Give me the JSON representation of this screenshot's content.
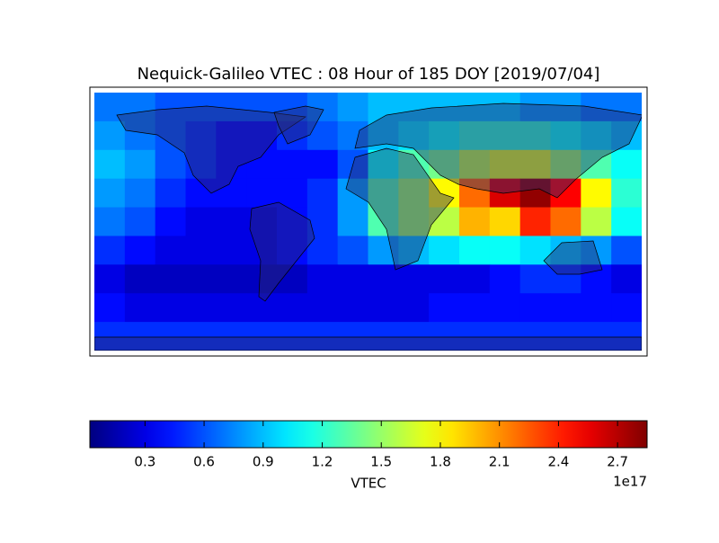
{
  "chart_data": {
    "type": "heatmap",
    "title": "Nequick-Galileo VTEC : 08 Hour of 185 DOY [2019/07/04]",
    "colormap": "jet",
    "values": [
      [
        0.7,
        0.7,
        0.6,
        0.6,
        0.6,
        0.6,
        0.6,
        0.7,
        0.8,
        0.9,
        0.9,
        0.9,
        0.9,
        0.9,
        0.8,
        0.8,
        0.7,
        0.7
      ],
      [
        0.8,
        0.7,
        0.6,
        0.5,
        0.4,
        0.4,
        0.5,
        0.6,
        0.7,
        0.9,
        1.0,
        1.1,
        1.2,
        1.2,
        1.2,
        1.1,
        1.0,
        0.9
      ],
      [
        0.9,
        0.8,
        0.6,
        0.5,
        0.4,
        0.4,
        0.4,
        0.4,
        0.6,
        1.1,
        1.3,
        1.4,
        1.6,
        1.7,
        1.7,
        1.5,
        1.3,
        1.1
      ],
      [
        0.8,
        0.7,
        0.5,
        0.4,
        0.4,
        0.4,
        0.4,
        0.5,
        0.8,
        1.3,
        1.5,
        1.8,
        2.2,
        2.6,
        2.8,
        2.5,
        1.8,
        1.2
      ],
      [
        0.7,
        0.6,
        0.4,
        0.3,
        0.3,
        0.3,
        0.4,
        0.5,
        0.8,
        1.3,
        1.5,
        1.6,
        2.0,
        1.9,
        2.4,
        2.2,
        1.6,
        1.1
      ],
      [
        0.5,
        0.4,
        0.3,
        0.3,
        0.3,
        0.3,
        0.4,
        0.5,
        0.6,
        0.8,
        0.9,
        1.0,
        1.1,
        1.1,
        1.0,
        0.9,
        0.8,
        0.6
      ],
      [
        0.3,
        0.2,
        0.2,
        0.2,
        0.2,
        0.2,
        0.2,
        0.3,
        0.3,
        0.3,
        0.3,
        0.3,
        0.3,
        0.4,
        0.5,
        0.5,
        0.4,
        0.3
      ],
      [
        0.4,
        0.3,
        0.3,
        0.3,
        0.3,
        0.3,
        0.3,
        0.3,
        0.3,
        0.3,
        0.3,
        0.4,
        0.4,
        0.4,
        0.4,
        0.4,
        0.4,
        0.4
      ],
      [
        0.5,
        0.5,
        0.5,
        0.5,
        0.5,
        0.5,
        0.5,
        0.5,
        0.5,
        0.5,
        0.5,
        0.5,
        0.5,
        0.5,
        0.5,
        0.5,
        0.5,
        0.5
      ]
    ],
    "clim": [
      0.02,
      2.85
    ],
    "cticks": [
      0.3,
      0.6,
      0.9,
      1.2,
      1.5,
      1.8,
      2.1,
      2.4,
      2.7
    ],
    "colorbar_label": "VTEC",
    "colorbar_offset": "1e17"
  }
}
